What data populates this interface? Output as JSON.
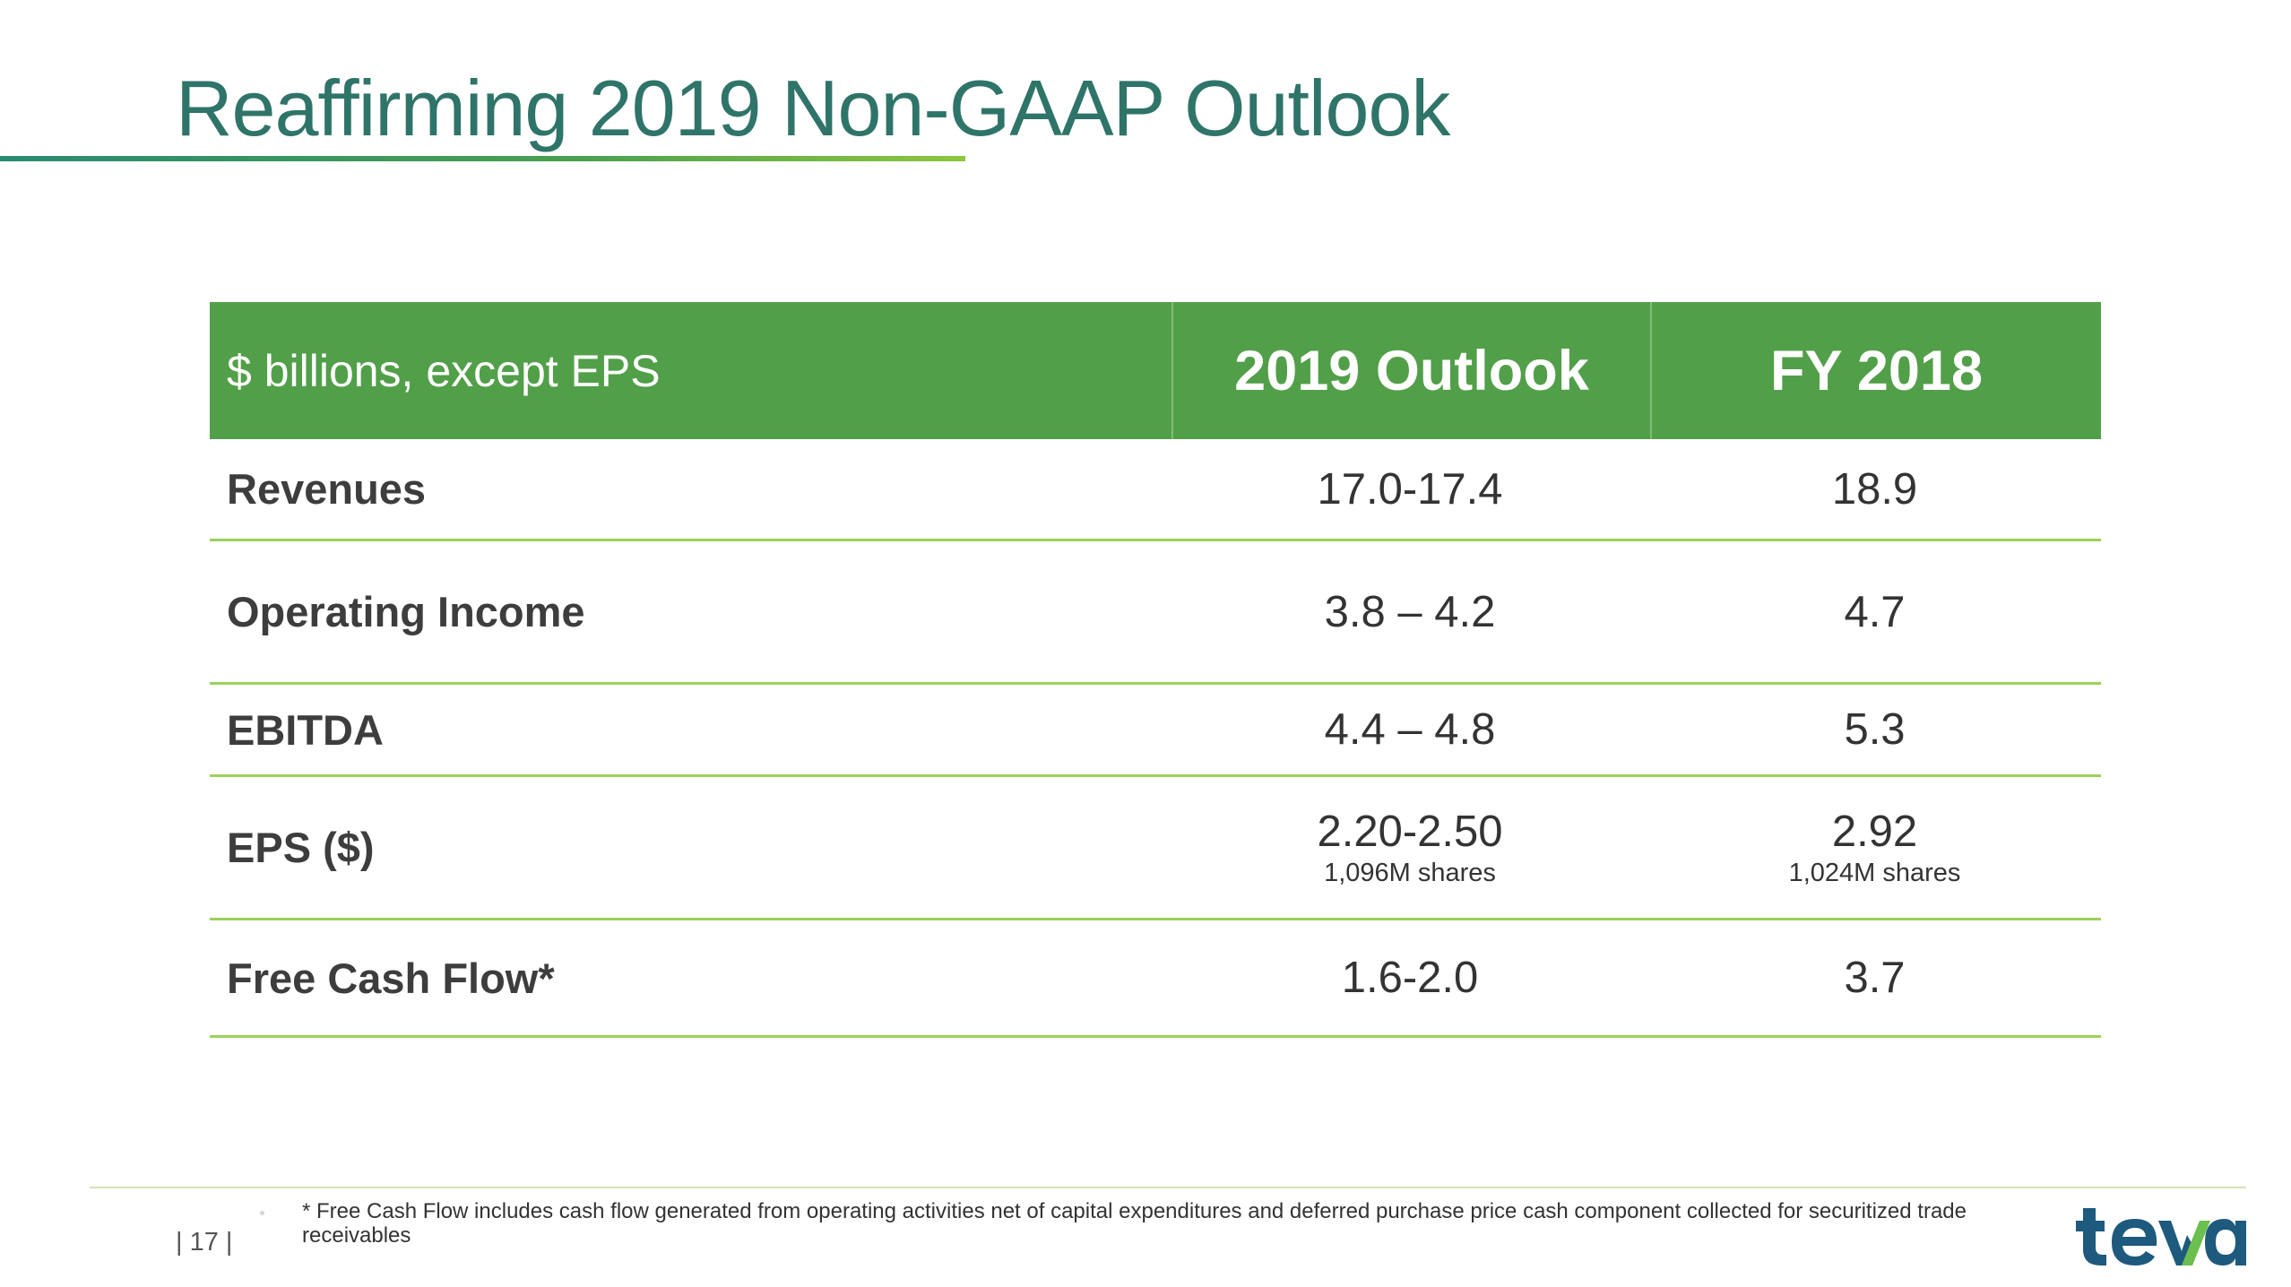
{
  "slide": {
    "title": "Reaffirming 2019 Non-GAAP Outlook",
    "page_number": "| 17 |",
    "footnote": "* Free Cash Flow includes cash flow generated from operating activities net of capital expenditures and deferred purchase price cash component collected for securitized trade receivables",
    "logo_text": "teva"
  },
  "table": {
    "header": {
      "label": "$ billions, except EPS",
      "col1": "2019 Outlook",
      "col2": "FY 2018"
    },
    "rows": [
      {
        "label": "Revenues",
        "outlook": "17.0-17.4",
        "fy": "18.9"
      },
      {
        "label": "Operating Income",
        "outlook": "3.8 – 4.2",
        "fy": "4.7"
      },
      {
        "label": "EBITDA",
        "outlook": "4.4 – 4.8",
        "fy": "5.3"
      },
      {
        "label": "EPS ($)",
        "outlook": "2.20-2.50",
        "outlook_sub": "1,096M shares",
        "fy": "2.92",
        "fy_sub": "1,024M shares"
      },
      {
        "label": "Free Cash Flow*",
        "outlook": "1.6-2.0",
        "fy": "3.7"
      }
    ]
  },
  "colors": {
    "title": "#2f7469",
    "header_bg": "#529f49",
    "row_rule": "#9cd05a",
    "logo_blue": "#1d5a7d",
    "logo_green": "#6bbf4e"
  }
}
